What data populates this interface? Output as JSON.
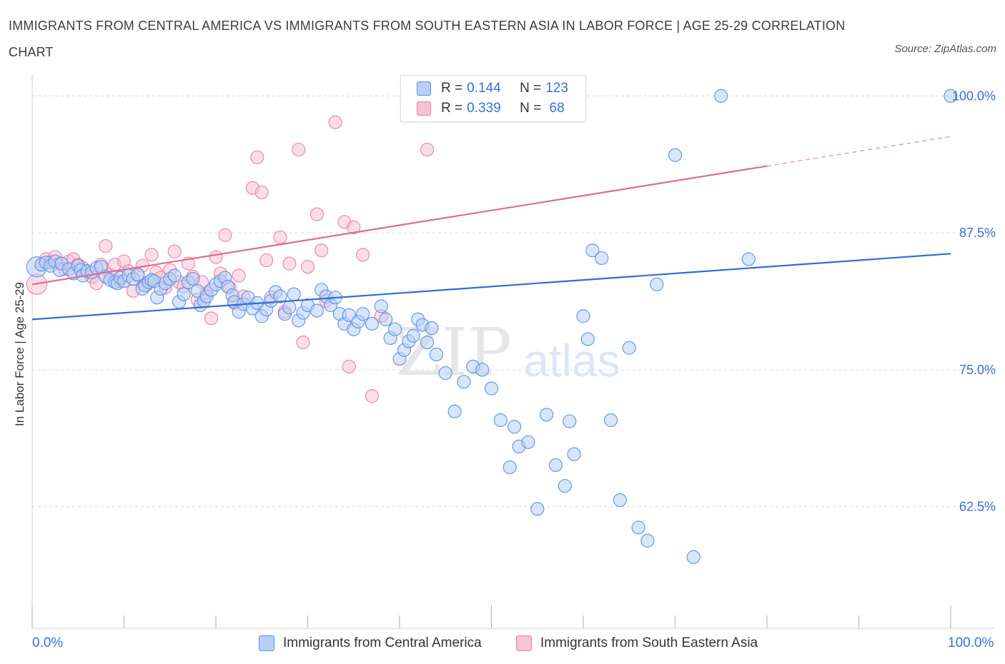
{
  "title": "IMMIGRANTS FROM CENTRAL AMERICA VS IMMIGRANTS FROM SOUTH EASTERN ASIA IN LABOR FORCE | AGE 25-29 CORRELATION CHART",
  "source": "Source: ZipAtlas.com",
  "watermark": {
    "zip": "ZIP",
    "atlas": "atlas"
  },
  "colors": {
    "blue": "#5b8ee6",
    "blue_fill": "#b8cff5",
    "blue_line": "#2f6fd1",
    "pink": "#e87fa2",
    "pink_fill": "#f6c3d3",
    "pink_line": "#e06a95",
    "axis_text_blue": "#3a6fd8",
    "grid": "#d9d9d9"
  },
  "legend": {
    "rows": [
      {
        "r_label": "R = ",
        "r_value": "0.144",
        "n_label": "N = ",
        "n_value": "123"
      },
      {
        "r_label": "R = ",
        "r_value": "0.339",
        "n_label": "N = ",
        "n_value": " 68"
      }
    ]
  },
  "chart_data": {
    "type": "scatter",
    "title": "IMMIGRANTS FROM CENTRAL AMERICA VS IMMIGRANTS FROM SOUTH EASTERN ASIA IN LABOR FORCE | AGE 25-29 CORRELATION CHART",
    "xlabel": "",
    "ylabel": "In Labor Force | Age 25-29",
    "xlim": [
      0,
      100
    ],
    "ylim": [
      51.4,
      101.2
    ],
    "x_tick_labels": [
      "0.0%",
      "100.0%"
    ],
    "y_ticks": [
      100.0,
      87.5,
      75.0,
      62.5
    ],
    "y_tick_labels": [
      "100.0%",
      "87.5%",
      "75.0%",
      "62.5%"
    ],
    "grid": true,
    "legend_position": "top-center",
    "series": [
      {
        "name": "Immigrants from Central America",
        "color": "#5b8ee6",
        "trend": {
          "x": [
            0,
            100
          ],
          "y": [
            79.6,
            85.6
          ],
          "r": 0.144,
          "n": 123
        },
        "points": [
          [
            0.5,
            84.4
          ],
          [
            1,
            84.6
          ],
          [
            1.5,
            84.8
          ],
          [
            2,
            84.5
          ],
          [
            2.5,
            84.9
          ],
          [
            3,
            84.1
          ],
          [
            3.2,
            84.7
          ],
          [
            4,
            84.2
          ],
          [
            4.5,
            83.8
          ],
          [
            5,
            84.5
          ],
          [
            5.3,
            84.1
          ],
          [
            5.5,
            83.6
          ],
          [
            6,
            84.0
          ],
          [
            6.5,
            83.9
          ],
          [
            7,
            84.3
          ],
          [
            7.5,
            84.4
          ],
          [
            8,
            83.5
          ],
          [
            8.5,
            83.2
          ],
          [
            9,
            83.0
          ],
          [
            9.3,
            82.9
          ],
          [
            9.6,
            83.4
          ],
          [
            10,
            83.1
          ],
          [
            10.5,
            83.6
          ],
          [
            11,
            83.3
          ],
          [
            11.5,
            83.7
          ],
          [
            12,
            82.4
          ],
          [
            12.3,
            82.7
          ],
          [
            12.7,
            83.0
          ],
          [
            13,
            83.2
          ],
          [
            13.3,
            83.1
          ],
          [
            13.6,
            81.6
          ],
          [
            14,
            82.4
          ],
          [
            14.5,
            82.9
          ],
          [
            15,
            83.3
          ],
          [
            15.5,
            83.6
          ],
          [
            16,
            81.2
          ],
          [
            16.5,
            81.9
          ],
          [
            17,
            83.0
          ],
          [
            17.5,
            83.3
          ],
          [
            18,
            82.2
          ],
          [
            18.3,
            80.9
          ],
          [
            18.7,
            81.3
          ],
          [
            19,
            81.7
          ],
          [
            19.5,
            82.3
          ],
          [
            20,
            82.8
          ],
          [
            20.5,
            83.1
          ],
          [
            21,
            83.4
          ],
          [
            21.3,
            82.6
          ],
          [
            21.8,
            81.8
          ],
          [
            22,
            81.2
          ],
          [
            22.5,
            80.3
          ],
          [
            23,
            81.0
          ],
          [
            23.5,
            81.6
          ],
          [
            24,
            80.6
          ],
          [
            24.5,
            81.1
          ],
          [
            25,
            79.9
          ],
          [
            25.5,
            80.5
          ],
          [
            26,
            81.3
          ],
          [
            26.5,
            82.1
          ],
          [
            27,
            81.7
          ],
          [
            27.5,
            80.1
          ],
          [
            28,
            80.7
          ],
          [
            28.5,
            81.9
          ],
          [
            29,
            79.5
          ],
          [
            29.5,
            80.2
          ],
          [
            30,
            80.9
          ],
          [
            31,
            80.4
          ],
          [
            31.5,
            82.3
          ],
          [
            32,
            81.7
          ],
          [
            32.5,
            80.9
          ],
          [
            33,
            81.6
          ],
          [
            33.5,
            80.1
          ],
          [
            34,
            79.2
          ],
          [
            34.5,
            80.0
          ],
          [
            35,
            78.7
          ],
          [
            35.5,
            79.4
          ],
          [
            36,
            80.1
          ],
          [
            37,
            79.2
          ],
          [
            38,
            80.8
          ],
          [
            38.5,
            79.6
          ],
          [
            39,
            77.9
          ],
          [
            39.5,
            78.7
          ],
          [
            40,
            76.0
          ],
          [
            40.5,
            76.8
          ],
          [
            41,
            77.6
          ],
          [
            41.5,
            78.1
          ],
          [
            42,
            79.6
          ],
          [
            42.5,
            79.1
          ],
          [
            43,
            77.5
          ],
          [
            43.5,
            78.8
          ],
          [
            44,
            76.4
          ],
          [
            45,
            74.7
          ],
          [
            46,
            71.2
          ],
          [
            47,
            73.9
          ],
          [
            48,
            75.3
          ],
          [
            49,
            75.0
          ],
          [
            50,
            73.3
          ],
          [
            51,
            70.4
          ],
          [
            52,
            66.1
          ],
          [
            52.5,
            69.8
          ],
          [
            53,
            68.0
          ],
          [
            54,
            68.4
          ],
          [
            55,
            62.3
          ],
          [
            56,
            70.9
          ],
          [
            57,
            66.3
          ],
          [
            58,
            64.4
          ],
          [
            58.5,
            70.3
          ],
          [
            59,
            67.3
          ],
          [
            60,
            79.9
          ],
          [
            60.5,
            77.8
          ],
          [
            61,
            85.9
          ],
          [
            62,
            85.2
          ],
          [
            63,
            70.4
          ],
          [
            64,
            63.1
          ],
          [
            65,
            77.0
          ],
          [
            66,
            60.6
          ],
          [
            67,
            59.4
          ],
          [
            68,
            82.8
          ],
          [
            70,
            94.6
          ],
          [
            72,
            57.9
          ],
          [
            75,
            100.0
          ],
          [
            78,
            85.1
          ],
          [
            100,
            100.0
          ]
        ]
      },
      {
        "name": "Immigrants from South Eastern Asia",
        "color": "#e87fa2",
        "trend": {
          "x": [
            0,
            80
          ],
          "y": [
            82.8,
            93.6
          ],
          "r": 0.339,
          "n": 68
        },
        "points": [
          [
            0.5,
            82.8
          ],
          [
            1,
            84.6
          ],
          [
            1.5,
            85.1
          ],
          [
            2,
            84.8
          ],
          [
            2.5,
            85.3
          ],
          [
            3,
            84.7
          ],
          [
            3.5,
            84.2
          ],
          [
            4,
            84.9
          ],
          [
            4.5,
            85.1
          ],
          [
            5,
            84.6
          ],
          [
            5.5,
            84.3
          ],
          [
            6,
            84.0
          ],
          [
            6.5,
            83.5
          ],
          [
            7,
            82.9
          ],
          [
            7.5,
            84.6
          ],
          [
            8,
            86.3
          ],
          [
            8.5,
            83.7
          ],
          [
            9,
            84.6
          ],
          [
            9.5,
            83.1
          ],
          [
            10,
            84.9
          ],
          [
            10.5,
            84.0
          ],
          [
            11,
            82.2
          ],
          [
            11.5,
            83.6
          ],
          [
            12,
            84.5
          ],
          [
            12.5,
            82.8
          ],
          [
            13,
            85.5
          ],
          [
            13.5,
            83.9
          ],
          [
            14,
            83.4
          ],
          [
            14.5,
            82.5
          ],
          [
            15,
            84.1
          ],
          [
            15.5,
            85.8
          ],
          [
            16,
            83.0
          ],
          [
            16.5,
            82.6
          ],
          [
            17,
            84.7
          ],
          [
            17.5,
            83.5
          ],
          [
            18,
            81.4
          ],
          [
            18.5,
            83.0
          ],
          [
            19,
            82.0
          ],
          [
            19.5,
            79.7
          ],
          [
            20,
            85.3
          ],
          [
            20.5,
            83.8
          ],
          [
            21,
            87.3
          ],
          [
            21.5,
            82.5
          ],
          [
            22,
            81.1
          ],
          [
            22.5,
            83.6
          ],
          [
            23,
            81.7
          ],
          [
            24,
            91.6
          ],
          [
            24.5,
            94.4
          ],
          [
            25,
            91.2
          ],
          [
            25.5,
            85.0
          ],
          [
            26,
            81.6
          ],
          [
            27,
            87.1
          ],
          [
            27.5,
            80.3
          ],
          [
            28,
            84.7
          ],
          [
            29,
            95.1
          ],
          [
            29.5,
            77.5
          ],
          [
            30,
            84.4
          ],
          [
            31,
            89.2
          ],
          [
            31.5,
            85.9
          ],
          [
            32,
            81.3
          ],
          [
            33,
            97.6
          ],
          [
            34,
            88.5
          ],
          [
            34.5,
            75.3
          ],
          [
            35,
            88.0
          ],
          [
            36,
            85.5
          ],
          [
            37,
            72.6
          ],
          [
            38,
            79.9
          ],
          [
            43,
            95.1
          ]
        ]
      }
    ]
  },
  "x_axis": {
    "left_label": "0.0%",
    "right_label": "100.0%"
  },
  "bottom_legend": {
    "items": [
      {
        "label": "Immigrants from Central America"
      },
      {
        "label": "Immigrants from South Eastern Asia"
      }
    ]
  }
}
